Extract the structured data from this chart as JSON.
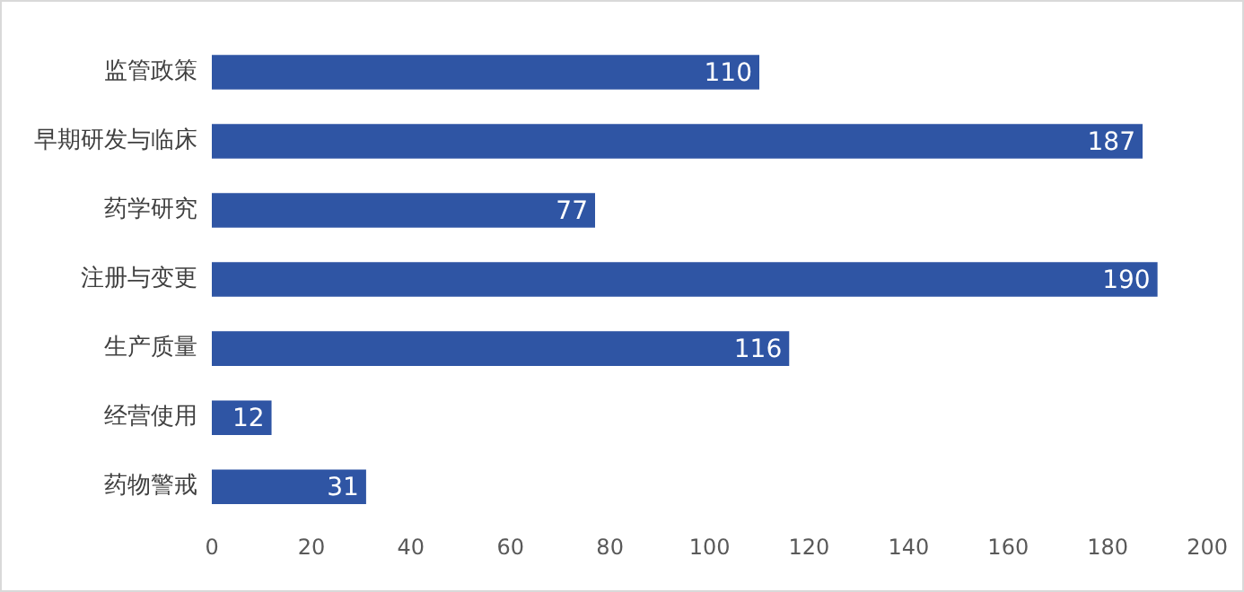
{
  "chart_data": {
    "type": "bar",
    "orientation": "horizontal",
    "categories": [
      "监管政策",
      "早期研发与临床",
      "药学研究",
      "注册与变更",
      "生产质量",
      "经营使用",
      "药物警戒"
    ],
    "values": [
      110,
      187,
      77,
      190,
      116,
      12,
      31
    ],
    "color": "#2f55a4",
    "xlim": [
      0,
      200
    ],
    "xticks": [
      0,
      20,
      40,
      60,
      80,
      100,
      120,
      140,
      160,
      180,
      200
    ],
    "grid": false,
    "legend": false,
    "data_labels": true
  }
}
